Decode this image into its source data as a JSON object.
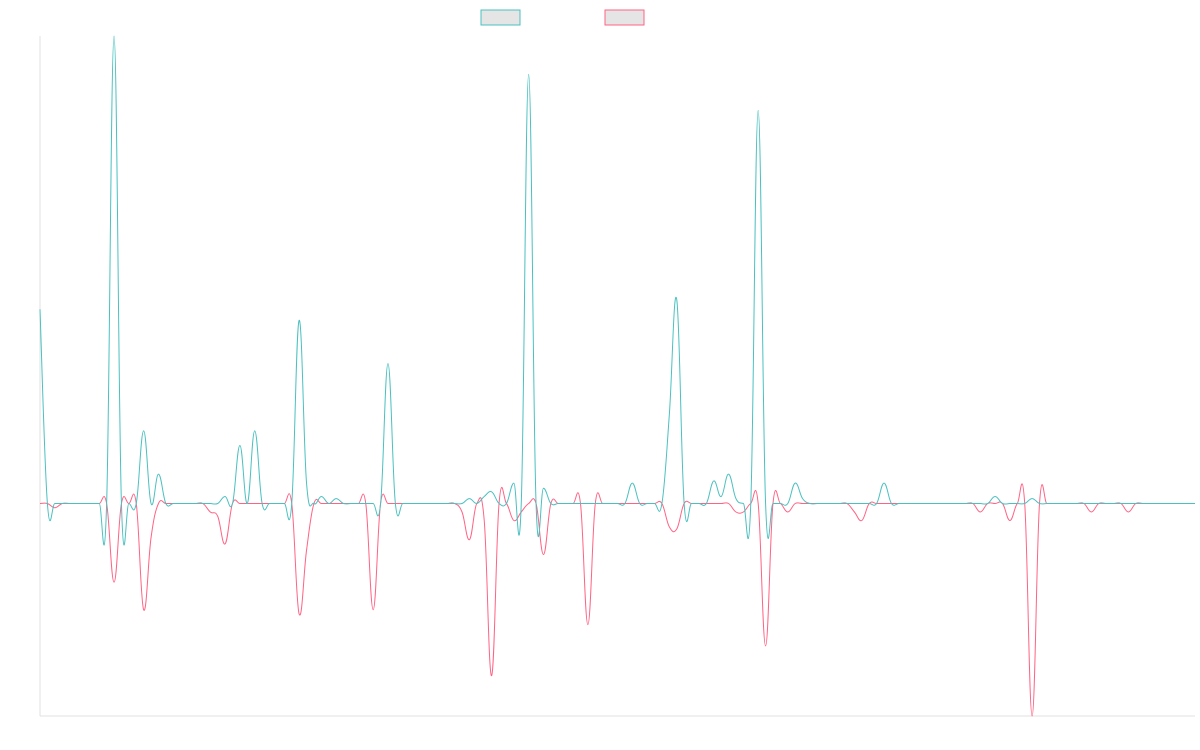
{
  "chart_data": {
    "type": "line",
    "legend_position": "top-center",
    "grid": false,
    "x_count": 157,
    "ylim": [
      -1,
      2.2
    ],
    "colors": {
      "series_a": "#4bc0c0",
      "series_b": "#ff6384",
      "legend_fill": "#e5e5e5",
      "axis": "#e0e0e0"
    },
    "series": [
      {
        "values": [
          0.914,
          0.0,
          0.0,
          0.0,
          0.0,
          0.0,
          0.0,
          0.0,
          0.0,
          0.0,
          2.2,
          0.0,
          0.0,
          0.0,
          0.342,
          0.0,
          0.138,
          0.0,
          0.0,
          0.0,
          0.0,
          0.0,
          0.0,
          0.0,
          0.0,
          0.033,
          0.0,
          0.273,
          0.0,
          0.342,
          0.0,
          0.0,
          0.0,
          0.0,
          0.0,
          0.862,
          0.096,
          0.0,
          0.033,
          0.0,
          0.023,
          0.0,
          0.0,
          0.0,
          0.0,
          0.0,
          0.0,
          0.658,
          0.0,
          0.0,
          0.0,
          0.0,
          0.0,
          0.0,
          0.0,
          0.0,
          0.0,
          0.0,
          0.023,
          0.0,
          0.033,
          0.055,
          0.0,
          0.0,
          0.096,
          0.0,
          2.02,
          0.0,
          0.072,
          0.0,
          0.0,
          0.0,
          0.0,
          0.0,
          0.0,
          0.0,
          0.0,
          0.0,
          0.0,
          0.0,
          0.096,
          0.0,
          0.0,
          0.0,
          0.0,
          0.418,
          0.96,
          0.0,
          0.0,
          0.0,
          0.0,
          0.106,
          0.033,
          0.138,
          0.023,
          0.0,
          0.0,
          1.85,
          0.0,
          0.0,
          0.0,
          0.0,
          0.096,
          0.023,
          0.0,
          0.0,
          0.0,
          0.0,
          0.0,
          0.0,
          0.0,
          0.0,
          0.0,
          0.0,
          0.096,
          0.0,
          0.0,
          0.0,
          0.0,
          0.0,
          0.0,
          0.0,
          0.0,
          0.0,
          0.0,
          0.0,
          0.0,
          0.0,
          0.0,
          0.033,
          0.0,
          0.0,
          0.0,
          0.0,
          0.023,
          0.0,
          0.0,
          0.0,
          0.0,
          0.0,
          0.0,
          0.0,
          0.0,
          0.0,
          0.0,
          0.0,
          0.0,
          0.0,
          0.0,
          0.0,
          0.0,
          0.0,
          0.0,
          0.0,
          0.0,
          0.0,
          0.0
        ]
      },
      {
        "values": [
          0.0,
          0.0,
          -0.02,
          0.0,
          0.0,
          0.0,
          0.0,
          0.0,
          0.0,
          0.0,
          -0.37,
          0.0,
          0.0,
          0.0,
          -0.5,
          -0.16,
          0.0,
          0.0,
          0.0,
          0.0,
          0.0,
          0.0,
          0.0,
          -0.04,
          -0.06,
          -0.19,
          0.0,
          0.0,
          0.0,
          0.0,
          0.0,
          0.0,
          0.0,
          0.0,
          0.0,
          -0.52,
          -0.22,
          0.0,
          0.0,
          0.0,
          0.0,
          0.0,
          0.0,
          0.0,
          0.0,
          -0.5,
          0.0,
          0.0,
          0.0,
          0.0,
          0.0,
          0.0,
          0.0,
          0.0,
          0.0,
          0.0,
          0.0,
          -0.04,
          -0.17,
          0.0,
          -0.08,
          -0.81,
          0.0,
          0.0,
          -0.08,
          -0.04,
          0.0,
          0.0,
          -0.24,
          0.0,
          0.0,
          0.0,
          0.0,
          0.0,
          -0.57,
          0.0,
          0.0,
          0.0,
          0.0,
          0.0,
          0.0,
          0.0,
          0.0,
          0.0,
          0.0,
          -0.11,
          -0.12,
          0.0,
          0.0,
          0.0,
          0.0,
          0.0,
          0.0,
          0.0,
          -0.04,
          -0.04,
          0.0,
          0.0,
          -0.67,
          0.0,
          0.0,
          -0.04,
          0.0,
          0.0,
          0.0,
          0.0,
          0.0,
          0.0,
          0.0,
          0.0,
          -0.04,
          -0.08,
          0.0,
          0.0,
          0.0,
          0.0,
          0.0,
          0.0,
          0.0,
          0.0,
          0.0,
          0.0,
          0.0,
          0.0,
          0.0,
          0.0,
          0.0,
          -0.04,
          0.0,
          0.0,
          0.0,
          -0.08,
          0.0,
          0.0,
          -1.0,
          0.0,
          0.0,
          0.0,
          0.0,
          0.0,
          0.0,
          0.0,
          -0.04,
          0.0,
          0.0,
          0.0,
          0.0,
          -0.04,
          0.0,
          0.0,
          0.0,
          0.0,
          0.0,
          0.0,
          0.0,
          0.0,
          0.0
        ]
      }
    ]
  }
}
